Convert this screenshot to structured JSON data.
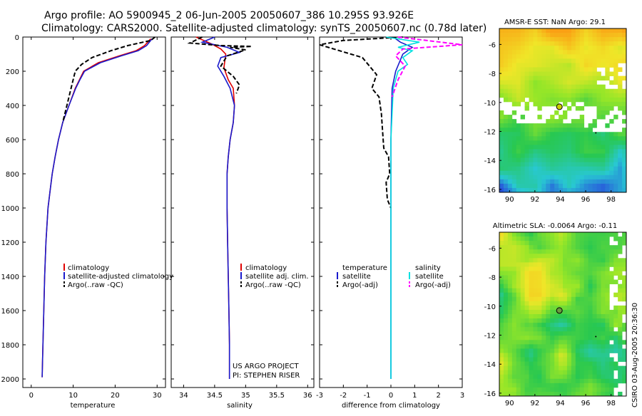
{
  "header": {
    "line1": "Argo profile: AO 5900945_2 06-Jun-2005 20050607_386 10.295S 93.926E",
    "line2": "Climatology: CARS2000. Satellite-adjusted climatology: synTS_20050607.nc (0.78d later)"
  },
  "side_credit": "CSIRO 03-Aug-2005 20:36:30",
  "colors": {
    "climatology": "#e00000",
    "satellite": "#1a1acc",
    "argo": "#000000",
    "cyan": "#00e0e0",
    "magenta": "#ff00ff",
    "marker": "#c8d000"
  },
  "chart_data": [
    {
      "type": "line",
      "id": "temperature",
      "xlabel": "temperature",
      "xlim": [
        -2,
        32
      ],
      "ylim": [
        2050,
        0
      ],
      "xticks": [
        "0",
        "10",
        "20",
        "30"
      ],
      "xtick_vals": [
        0,
        10,
        20,
        30
      ],
      "yticks": [
        "0",
        "200",
        "400",
        "600",
        "800",
        "1000",
        "1200",
        "1400",
        "1600",
        "1800",
        "2000"
      ],
      "ytick_vals": [
        0,
        200,
        400,
        600,
        800,
        1000,
        1200,
        1400,
        1600,
        1800,
        2000
      ],
      "legend": [
        "climatology",
        "satellite-adjusted climatology",
        "Argo(..raw -QC)"
      ],
      "series": [
        {
          "name": "climatology",
          "style": "solid",
          "color": "#e00000",
          "x": [
            28.5,
            27,
            25,
            21,
            16,
            12.5,
            11.5,
            10.5,
            9,
            7.5,
            6.5,
            5.7,
            5,
            4.5,
            4,
            3.5,
            3.2,
            3,
            2.8,
            2.7,
            2.6
          ],
          "y": [
            10,
            50,
            80,
            110,
            150,
            200,
            250,
            300,
            400,
            500,
            600,
            700,
            800,
            900,
            1000,
            1200,
            1400,
            1600,
            1800,
            1900,
            1990
          ]
        },
        {
          "name": "satellite",
          "style": "solid",
          "color": "#1a1acc",
          "x": [
            28.8,
            27.5,
            25.5,
            21.5,
            16.5,
            12.7,
            11.6,
            10.6,
            9,
            7.5,
            6.5,
            5.7,
            5,
            4.5,
            4,
            3.5,
            3.2,
            3,
            2.8,
            2.7,
            2.6
          ],
          "y": [
            10,
            50,
            80,
            110,
            150,
            200,
            250,
            300,
            400,
            500,
            600,
            700,
            800,
            900,
            1000,
            1200,
            1400,
            1600,
            1800,
            1900,
            1990
          ]
        },
        {
          "name": "Argo",
          "style": "dash",
          "color": "#000000",
          "x": [
            29.5,
            28.5,
            23,
            19,
            14.5,
            12,
            10.5,
            9.5,
            8.5,
            7.5
          ],
          "y": [
            0,
            20,
            50,
            80,
            120,
            160,
            200,
            300,
            400,
            500
          ]
        }
      ]
    },
    {
      "type": "line",
      "id": "salinity",
      "xlabel": "salinity",
      "xlim": [
        33.8,
        36.1
      ],
      "ylim": [
        2050,
        0
      ],
      "xticks": [
        "34",
        "34.5",
        "35",
        "35.5",
        "36"
      ],
      "xtick_vals": [
        34,
        34.5,
        35,
        35.5,
        36
      ],
      "legend": [
        "climatology",
        "satellite adj. clim.",
        "Argo(..raw -QC)"
      ],
      "credit": [
        "US ARGO PROJECT",
        "PI: STEPHEN RISER"
      ],
      "series": [
        {
          "name": "climatology",
          "style": "solid",
          "color": "#e00000",
          "x": [
            34.2,
            34.45,
            34.6,
            34.68,
            34.65,
            34.72,
            34.8,
            34.82,
            34.8,
            34.75,
            34.72,
            34.7,
            34.7,
            34.71,
            34.72,
            34.73,
            34.74,
            34.74
          ],
          "y": [
            0,
            40,
            70,
            100,
            180,
            250,
            300,
            400,
            500,
            600,
            700,
            800,
            1000,
            1200,
            1400,
            1600,
            1800,
            2000
          ]
        },
        {
          "name": "satellite",
          "style": "solid",
          "color": "#1a1acc",
          "x": [
            34.5,
            34.3,
            34.7,
            34.9,
            34.6,
            34.55,
            34.65,
            34.75,
            34.82,
            34.8,
            34.75,
            34.72,
            34.7,
            34.7,
            34.71,
            34.72,
            34.73,
            34.74,
            34.74
          ],
          "y": [
            0,
            30,
            60,
            90,
            120,
            170,
            230,
            300,
            400,
            500,
            600,
            700,
            800,
            1000,
            1200,
            1400,
            1600,
            1800,
            2000
          ]
        },
        {
          "name": "Argo",
          "style": "dash",
          "color": "#000000",
          "x": [
            34.3,
            34.1,
            34.6,
            35.1,
            34.75,
            35.0,
            34.7,
            34.6,
            34.8,
            34.9,
            34.85
          ],
          "y": [
            0,
            35,
            50,
            55,
            60,
            75,
            110,
            170,
            230,
            280,
            330
          ]
        }
      ]
    },
    {
      "type": "line",
      "id": "difference",
      "xlabel": "difference from climatology",
      "xlim": [
        -3,
        3
      ],
      "ylim": [
        2050,
        0
      ],
      "xticks": [
        "-3",
        "-2",
        "-1",
        "0",
        "1",
        "2",
        "3"
      ],
      "xtick_vals": [
        -3,
        -2,
        -1,
        0,
        1,
        2,
        3
      ],
      "legend_left": [
        "temperature",
        "satellite",
        "Argo(-adj)"
      ],
      "legend_right": [
        "salinity",
        "satellite",
        "Argo(-adj)"
      ],
      "series": [
        {
          "name": "temperature satellite",
          "style": "solid",
          "color": "#1a1acc",
          "x": [
            0.1,
            0.4,
            0.9,
            0.5,
            0.2,
            0.05,
            0,
            0,
            0
          ],
          "y": [
            0,
            30,
            60,
            100,
            200,
            300,
            600,
            1000,
            2000
          ]
        },
        {
          "name": "temperature Argo",
          "style": "dash",
          "color": "#000000",
          "x": [
            0.5,
            -2,
            -3,
            -1.2,
            -0.6,
            -0.8,
            -0.5,
            -0.4,
            -0.35,
            -0.3,
            -0.1,
            -0.05,
            -0.2,
            -0.15,
            0
          ],
          "y": [
            0,
            20,
            45,
            120,
            220,
            300,
            350,
            450,
            550,
            650,
            700,
            800,
            850,
            950,
            1000
          ]
        },
        {
          "name": "salinity satellite",
          "style": "solid",
          "color": "#00e0e0",
          "x": [
            -0.2,
            1.2,
            0.3,
            0.9,
            0.5,
            0.7,
            0.3,
            0.1,
            0,
            0
          ],
          "y": [
            0,
            30,
            60,
            80,
            120,
            160,
            200,
            300,
            600,
            2000
          ]
        },
        {
          "name": "salinity Argo",
          "style": "dash",
          "color": "#ff00ff",
          "x": [
            0.3,
            1.5,
            3,
            0.5,
            0.2,
            0.6,
            0.3,
            0.05
          ],
          "y": [
            0,
            20,
            45,
            70,
            110,
            170,
            250,
            350
          ]
        }
      ]
    },
    {
      "type": "heatmap",
      "id": "sst",
      "title": "AMSR-E SST: NaN Argo: 29.1",
      "xlim": [
        89.2,
        99.2
      ],
      "ylim": [
        -16.2,
        -4.9
      ],
      "xticks": [
        "90",
        "92",
        "94",
        "96",
        "98"
      ],
      "xtick_vals": [
        90,
        92,
        94,
        96,
        98
      ],
      "yticks": [
        "-6",
        "-8",
        "-10",
        "-12",
        "-14",
        "-16"
      ],
      "ytick_vals": [
        -6,
        -8,
        -10,
        -12,
        -14,
        -16
      ],
      "marker": {
        "lon": 93.93,
        "lat": -10.3
      }
    },
    {
      "type": "heatmap",
      "id": "sla",
      "title": "Altimetric SLA: -0.0064 Argo: -0.11",
      "xlim": [
        89.2,
        99.2
      ],
      "ylim": [
        -16.2,
        -4.9
      ],
      "xticks": [
        "90",
        "92",
        "94",
        "96",
        "98"
      ],
      "xtick_vals": [
        90,
        92,
        94,
        96,
        98
      ],
      "yticks": [
        "-6",
        "-8",
        "-10",
        "-12",
        "-14",
        "-16"
      ],
      "ytick_vals": [
        -6,
        -8,
        -10,
        -12,
        -14,
        -16
      ],
      "marker": {
        "lon": 93.93,
        "lat": -10.3
      }
    }
  ]
}
